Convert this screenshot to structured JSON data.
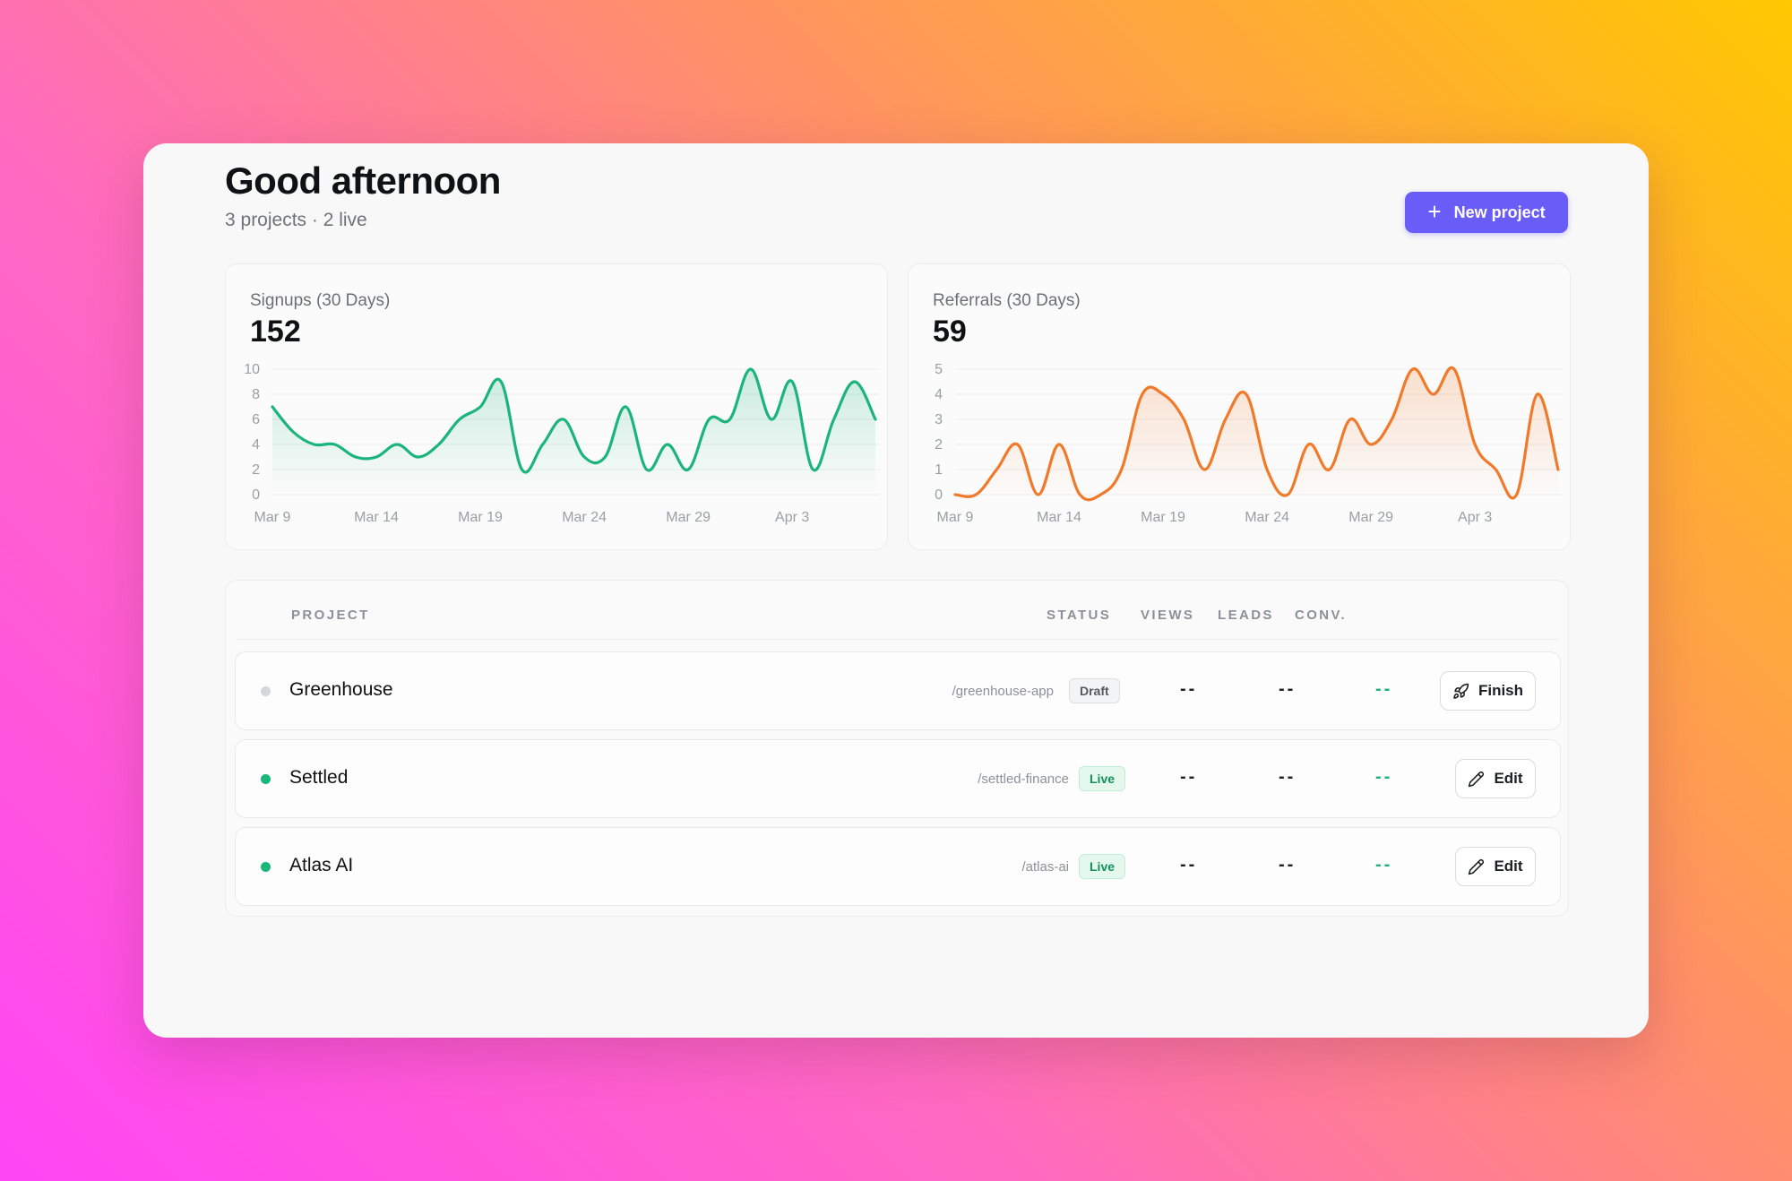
{
  "header": {
    "greeting": "Good afternoon",
    "summary": "3 projects · 2 live",
    "new_button_icon": "plus-icon",
    "new_button_label": "New project",
    "accent": "#6a5cf6"
  },
  "charts": [
    {
      "title": "Signups (30 Days)",
      "total": "152",
      "color": "#1bb47e"
    },
    {
      "title": "Referrals (30 Days)",
      "total": "59",
      "color": "#f07a2a"
    }
  ],
  "chart_data": [
    {
      "type": "area",
      "title": "Signups (30 Days)",
      "xlabel": "",
      "ylabel": "",
      "ylim": [
        0,
        10
      ],
      "yticks": [
        "0",
        "2",
        "4",
        "6",
        "8",
        "10"
      ],
      "xticks": [
        "Mar 9",
        "Mar 14",
        "Mar 19",
        "Mar 24",
        "Mar 29",
        "Apr 3"
      ],
      "x": [
        "Mar 9",
        "Mar 10",
        "Mar 11",
        "Mar 12",
        "Mar 13",
        "Mar 14",
        "Mar 15",
        "Mar 16",
        "Mar 17",
        "Mar 18",
        "Mar 19",
        "Mar 20",
        "Mar 21",
        "Mar 22",
        "Mar 23",
        "Mar 24",
        "Mar 25",
        "Mar 26",
        "Mar 27",
        "Mar 28",
        "Mar 29",
        "Mar 30",
        "Mar 31",
        "Apr 1",
        "Apr 2",
        "Apr 3",
        "Apr 4",
        "Apr 5",
        "Apr 6",
        "Apr 7"
      ],
      "values": [
        7,
        5,
        4,
        4,
        3,
        3,
        4,
        3,
        4,
        6,
        7,
        9,
        2,
        4,
        6,
        3,
        3,
        7,
        2,
        4,
        2,
        6,
        6,
        10,
        6,
        9,
        2,
        6,
        9,
        6
      ],
      "grid": true,
      "color": "#1bb47e"
    },
    {
      "type": "area",
      "title": "Referrals (30 Days)",
      "xlabel": "",
      "ylabel": "",
      "ylim": [
        0,
        5
      ],
      "yticks": [
        "0",
        "1",
        "2",
        "3",
        "4",
        "5"
      ],
      "xticks": [
        "Mar 9",
        "Mar 14",
        "Mar 19",
        "Mar 24",
        "Mar 29",
        "Apr 3"
      ],
      "x": [
        "Mar 9",
        "Mar 10",
        "Mar 11",
        "Mar 12",
        "Mar 13",
        "Mar 14",
        "Mar 15",
        "Mar 16",
        "Mar 17",
        "Mar 18",
        "Mar 19",
        "Mar 20",
        "Mar 21",
        "Mar 22",
        "Mar 23",
        "Mar 24",
        "Mar 25",
        "Mar 26",
        "Mar 27",
        "Mar 28",
        "Mar 29",
        "Mar 30",
        "Mar 31",
        "Apr 1",
        "Apr 2",
        "Apr 3",
        "Apr 4",
        "Apr 5",
        "Apr 6",
        "Apr 7"
      ],
      "values": [
        0,
        0,
        1,
        2,
        0,
        2,
        0,
        0,
        1,
        4,
        4,
        3,
        1,
        3,
        4,
        1,
        0,
        2,
        1,
        3,
        2,
        3,
        5,
        4,
        5,
        2,
        1,
        0,
        4,
        1
      ],
      "grid": true,
      "color": "#f07a2a"
    }
  ],
  "table": {
    "headers": {
      "project": "PROJECT",
      "status": "STATUS",
      "views": "VIEWS",
      "leads": "LEADS",
      "conv": "CONV."
    },
    "rows": [
      {
        "name": "Greenhouse",
        "slug": "/greenhouse-app",
        "status": "Draft",
        "dot_color": "#d4d6da",
        "views": "--",
        "leads": "--",
        "conv": "--",
        "action_label": "Finish",
        "action_icon": "rocket-icon"
      },
      {
        "name": "Settled",
        "slug": "/settled-finance",
        "status": "Live",
        "dot_color": "#17b87a",
        "views": "--",
        "leads": "--",
        "conv": "--",
        "action_label": "Edit",
        "action_icon": "pencil-icon"
      },
      {
        "name": "Atlas AI",
        "slug": "/atlas-ai",
        "status": "Live",
        "dot_color": "#17b87a",
        "views": "--",
        "leads": "--",
        "conv": "--",
        "action_label": "Edit",
        "action_icon": "pencil-icon"
      }
    ]
  }
}
